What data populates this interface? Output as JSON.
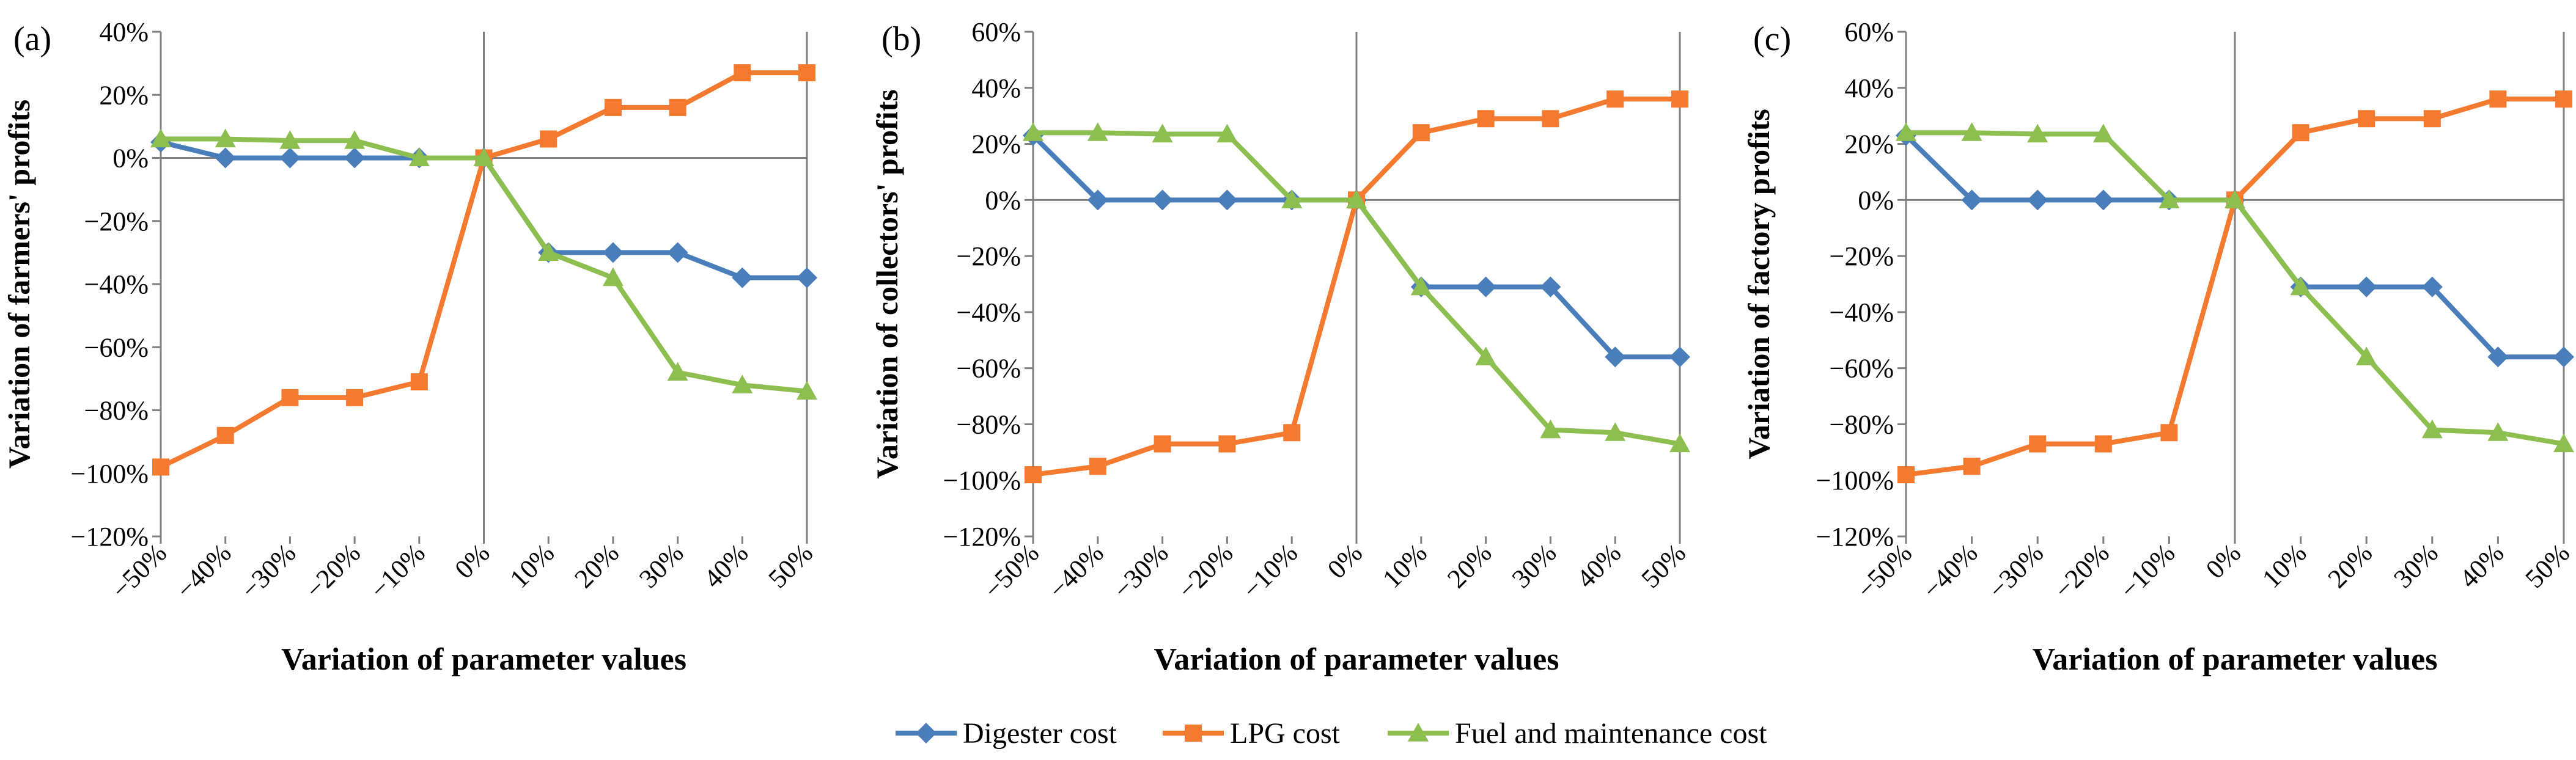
{
  "colors": {
    "digester": "#4A7EBB",
    "lpg": "#F47A30",
    "fuel": "#8DBE50",
    "axis": "#808080"
  },
  "legend": [
    {
      "key": "digester",
      "label": "Digester cost",
      "marker": "diamond"
    },
    {
      "key": "lpg",
      "label": "LPG cost",
      "marker": "square"
    },
    {
      "key": "fuel",
      "label": "Fuel and maintenance cost",
      "marker": "triangle"
    }
  ],
  "chart_data": [
    {
      "type": "line",
      "panel_label": "(a)",
      "ylabel": "Variation of farmers' profits",
      "xlabel": "Variation of parameter values",
      "categories": [
        "−50%",
        "−40%",
        "−30%",
        "−20%",
        "−10%",
        "0%",
        "10%",
        "20%",
        "30%",
        "40%",
        "50%"
      ],
      "ylim": [
        -120,
        40
      ],
      "yticks": [
        40,
        20,
        0,
        -20,
        -40,
        -60,
        -80,
        -100,
        -120
      ],
      "ytick_labels": [
        "40%",
        "20%",
        "0%",
        "−20%",
        "−40%",
        "−60%",
        "−80%",
        "−100%",
        "−120%"
      ],
      "series": [
        {
          "key": "digester",
          "name": "Digester cost",
          "values": [
            5,
            0,
            0,
            0,
            0,
            0,
            -30,
            -30,
            -30,
            -38,
            -38
          ]
        },
        {
          "key": "lpg",
          "name": "LPG cost",
          "values": [
            -98,
            -88,
            -76,
            -76,
            -71,
            0,
            6,
            16,
            16,
            27,
            27
          ]
        },
        {
          "key": "fuel",
          "name": "Fuel and maintenance cost",
          "values": [
            6,
            6,
            5.5,
            5.5,
            0,
            0,
            -30,
            -38,
            -68,
            -72,
            -74
          ]
        }
      ]
    },
    {
      "type": "line",
      "panel_label": "(b)",
      "ylabel": "Variation of collectors' profits",
      "xlabel": "Variation of parameter values",
      "categories": [
        "−50%",
        "−40%",
        "−30%",
        "−20%",
        "−10%",
        "0%",
        "10%",
        "20%",
        "30%",
        "40%",
        "50%"
      ],
      "ylim": [
        -120,
        60
      ],
      "yticks": [
        60,
        40,
        20,
        0,
        -20,
        -40,
        -60,
        -80,
        -100,
        -120
      ],
      "ytick_labels": [
        "60%",
        "40%",
        "20%",
        "0%",
        "−20%",
        "−40%",
        "−60%",
        "−80%",
        "−100%",
        "−120%"
      ],
      "series": [
        {
          "key": "digester",
          "name": "Digester cost",
          "values": [
            23,
            0,
            0,
            0,
            0,
            0,
            -31,
            -31,
            -31,
            -56,
            -56
          ]
        },
        {
          "key": "lpg",
          "name": "LPG cost",
          "values": [
            -98,
            -95,
            -87,
            -87,
            -83,
            0,
            24,
            29,
            29,
            36,
            36
          ]
        },
        {
          "key": "fuel",
          "name": "Fuel and maintenance cost",
          "values": [
            24,
            24,
            23.5,
            23.5,
            0,
            0,
            -31,
            -56,
            -82,
            -83,
            -87
          ]
        }
      ]
    },
    {
      "type": "line",
      "panel_label": "(c)",
      "ylabel": "Variation of factory profits",
      "xlabel": "Variation of parameter values",
      "categories": [
        "−50%",
        "−40%",
        "−30%",
        "−20%",
        "−10%",
        "0%",
        "10%",
        "20%",
        "30%",
        "40%",
        "50%"
      ],
      "ylim": [
        -120,
        60
      ],
      "yticks": [
        60,
        40,
        20,
        0,
        -20,
        -40,
        -60,
        -80,
        -100,
        -120
      ],
      "ytick_labels": [
        "60%",
        "40%",
        "20%",
        "0%",
        "−20%",
        "−40%",
        "−60%",
        "−80%",
        "−100%",
        "−120%"
      ],
      "series": [
        {
          "key": "digester",
          "name": "Digester cost",
          "values": [
            23,
            0,
            0,
            0,
            0,
            0,
            -31,
            -31,
            -31,
            -56,
            -56
          ]
        },
        {
          "key": "lpg",
          "name": "LPG cost",
          "values": [
            -98,
            -95,
            -87,
            -87,
            -83,
            0,
            24,
            29,
            29,
            36,
            36
          ]
        },
        {
          "key": "fuel",
          "name": "Fuel and maintenance cost",
          "values": [
            24,
            24,
            23.5,
            23.5,
            0,
            0,
            -31,
            -56,
            -82,
            -83,
            -87
          ]
        }
      ]
    }
  ]
}
